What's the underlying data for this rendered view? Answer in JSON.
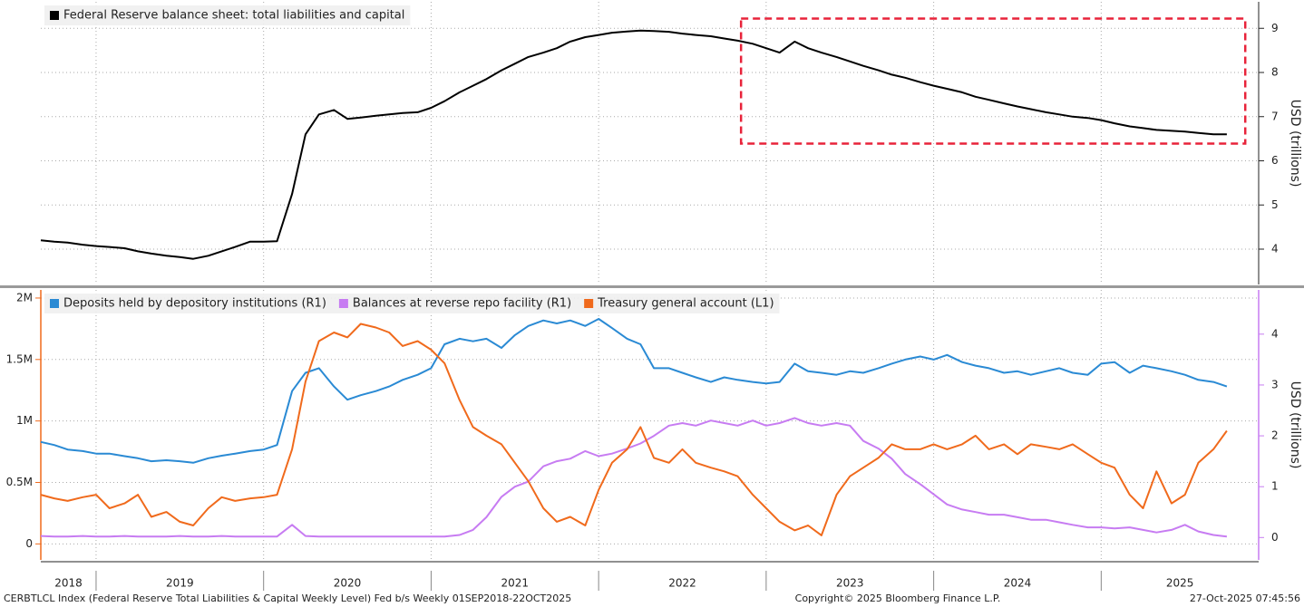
{
  "chart_data": [
    {
      "type": "line",
      "y_axis_position": "right",
      "y_label": "USD (trillions)",
      "legend": "top-left",
      "xlim": [
        2018.67,
        2025.94
      ],
      "xticks": [
        2019,
        2020,
        2021,
        2022,
        2023,
        2024,
        2025
      ],
      "ylim": [
        3.2,
        9.6
      ],
      "yticks": [
        4,
        5,
        6,
        7,
        8,
        9
      ],
      "grid": true,
      "highlight": {
        "xlim": [
          2022.85,
          2025.86
        ],
        "ylim": [
          6.39,
          9.22
        ],
        "color": "#e8233a"
      },
      "x": [
        2018.67,
        2018.75,
        2018.83,
        2018.92,
        2019,
        2019.08,
        2019.17,
        2019.25,
        2019.33,
        2019.42,
        2019.5,
        2019.58,
        2019.67,
        2019.75,
        2019.83,
        2019.92,
        2020,
        2020.08,
        2020.17,
        2020.25,
        2020.33,
        2020.42,
        2020.5,
        2020.58,
        2020.67,
        2020.75,
        2020.83,
        2020.92,
        2021,
        2021.08,
        2021.17,
        2021.25,
        2021.33,
        2021.42,
        2021.5,
        2021.58,
        2021.67,
        2021.75,
        2021.83,
        2021.92,
        2022,
        2022.08,
        2022.17,
        2022.25,
        2022.33,
        2022.42,
        2022.5,
        2022.58,
        2022.67,
        2022.75,
        2022.83,
        2022.92,
        2023,
        2023.08,
        2023.17,
        2023.25,
        2023.33,
        2023.42,
        2023.5,
        2023.58,
        2023.67,
        2023.75,
        2023.83,
        2023.92,
        2024,
        2024.08,
        2024.17,
        2024.25,
        2024.33,
        2024.42,
        2024.5,
        2024.58,
        2024.67,
        2024.75,
        2024.83,
        2024.92,
        2025,
        2025.08,
        2025.17,
        2025.25,
        2025.33,
        2025.42,
        2025.5,
        2025.58,
        2025.67,
        2025.75
      ],
      "series": [
        {
          "name": "Federal Reserve balance sheet: total liabilities and capital",
          "color": "#000000",
          "values": [
            4.2,
            4.17,
            4.15,
            4.1,
            4.07,
            4.05,
            4.02,
            3.95,
            3.9,
            3.85,
            3.82,
            3.78,
            3.85,
            3.95,
            4.05,
            4.17,
            4.17,
            4.18,
            5.25,
            6.6,
            7.05,
            7.15,
            6.95,
            6.98,
            7.02,
            7.05,
            7.08,
            7.1,
            7.2,
            7.35,
            7.55,
            7.7,
            7.85,
            8.05,
            8.2,
            8.35,
            8.45,
            8.55,
            8.7,
            8.8,
            8.85,
            8.9,
            8.93,
            8.95,
            8.94,
            8.92,
            8.88,
            8.85,
            8.82,
            8.77,
            8.72,
            8.65,
            8.55,
            8.45,
            8.7,
            8.55,
            8.45,
            8.35,
            8.25,
            8.15,
            8.05,
            7.95,
            7.88,
            7.78,
            7.7,
            7.63,
            7.55,
            7.45,
            7.38,
            7.3,
            7.23,
            7.17,
            7.1,
            7.05,
            7.0,
            6.97,
            6.92,
            6.85,
            6.78,
            6.74,
            6.7,
            6.68,
            6.66,
            6.63,
            6.6,
            6.6
          ]
        }
      ]
    },
    {
      "type": "line",
      "y2_label": "USD (trillions)",
      "legend": "top-left",
      "xlim": [
        2018.67,
        2025.94
      ],
      "xticks": [
        2019,
        2020,
        2021,
        2022,
        2023,
        2024,
        2025
      ],
      "xlabels": [
        2018,
        2019,
        2020,
        2021,
        2022,
        2023,
        2024,
        2025
      ],
      "ylim": [
        -130000,
        2066000
      ],
      "yticks": [
        0,
        {
          "value": 500000,
          "label": "0.5M"
        },
        {
          "value": 1000000,
          "label": "1M"
        },
        {
          "value": 1500000,
          "label": "1.5M"
        },
        {
          "value": 2000000,
          "label": "2M"
        }
      ],
      "y2lim": [
        -0.44,
        4.87
      ],
      "y2ticks": [
        0,
        1,
        2,
        3,
        4
      ],
      "grid": true,
      "x": [
        2018.67,
        2018.75,
        2018.83,
        2018.92,
        2019,
        2019.08,
        2019.17,
        2019.25,
        2019.33,
        2019.42,
        2019.5,
        2019.58,
        2019.67,
        2019.75,
        2019.83,
        2019.92,
        2020,
        2020.08,
        2020.17,
        2020.25,
        2020.33,
        2020.42,
        2020.5,
        2020.58,
        2020.67,
        2020.75,
        2020.83,
        2020.92,
        2021,
        2021.08,
        2021.17,
        2021.25,
        2021.33,
        2021.42,
        2021.5,
        2021.58,
        2021.67,
        2021.75,
        2021.83,
        2021.92,
        2022,
        2022.08,
        2022.17,
        2022.25,
        2022.33,
        2022.42,
        2022.5,
        2022.58,
        2022.67,
        2022.75,
        2022.83,
        2022.92,
        2023,
        2023.08,
        2023.17,
        2023.25,
        2023.33,
        2023.42,
        2023.5,
        2023.58,
        2023.67,
        2023.75,
        2023.83,
        2023.92,
        2024,
        2024.08,
        2024.17,
        2024.25,
        2024.33,
        2024.42,
        2024.5,
        2024.58,
        2024.67,
        2024.75,
        2024.83,
        2024.92,
        2025,
        2025.08,
        2025.17,
        2025.25,
        2025.33,
        2025.42,
        2025.5,
        2025.58,
        2025.67,
        2025.75
      ],
      "series": [
        {
          "name": "Deposits held by depository institutions (R1)",
          "color": "#2a8ad4",
          "axis": "y2",
          "values": [
            1.88,
            1.82,
            1.73,
            1.7,
            1.65,
            1.65,
            1.6,
            1.56,
            1.5,
            1.52,
            1.5,
            1.47,
            1.56,
            1.61,
            1.65,
            1.7,
            1.73,
            1.82,
            2.88,
            3.24,
            3.33,
            2.97,
            2.71,
            2.8,
            2.88,
            2.97,
            3.1,
            3.2,
            3.33,
            3.8,
            3.91,
            3.86,
            3.91,
            3.73,
            3.98,
            4.16,
            4.27,
            4.21,
            4.27,
            4.16,
            4.3,
            4.12,
            3.91,
            3.8,
            3.33,
            3.33,
            3.24,
            3.15,
            3.06,
            3.15,
            3.1,
            3.06,
            3.03,
            3.06,
            3.42,
            3.27,
            3.24,
            3.2,
            3.27,
            3.24,
            3.33,
            3.42,
            3.5,
            3.56,
            3.5,
            3.59,
            3.45,
            3.38,
            3.33,
            3.24,
            3.27,
            3.2,
            3.27,
            3.33,
            3.24,
            3.2,
            3.42,
            3.45,
            3.24,
            3.38,
            3.33,
            3.27,
            3.2,
            3.1,
            3.06,
            2.97
          ]
        },
        {
          "name": "Balances at reverse repo facility (R1)",
          "color": "#c77cf2",
          "axis": "y2",
          "values": [
            0.03,
            0.02,
            0.02,
            0.03,
            0.02,
            0.02,
            0.03,
            0.02,
            0.02,
            0.02,
            0.03,
            0.02,
            0.02,
            0.03,
            0.02,
            0.02,
            0.02,
            0.02,
            0.25,
            0.03,
            0.02,
            0.02,
            0.02,
            0.02,
            0.02,
            0.02,
            0.02,
            0.02,
            0.02,
            0.02,
            0.05,
            0.15,
            0.4,
            0.8,
            1.0,
            1.1,
            1.4,
            1.5,
            1.55,
            1.7,
            1.6,
            1.65,
            1.75,
            1.85,
            2.0,
            2.2,
            2.25,
            2.2,
            2.3,
            2.25,
            2.2,
            2.3,
            2.2,
            2.25,
            2.35,
            2.25,
            2.2,
            2.25,
            2.2,
            1.9,
            1.75,
            1.55,
            1.25,
            1.05,
            0.85,
            0.65,
            0.55,
            0.5,
            0.45,
            0.45,
            0.4,
            0.35,
            0.35,
            0.3,
            0.25,
            0.2,
            0.2,
            0.18,
            0.2,
            0.15,
            0.1,
            0.15,
            0.25,
            0.12,
            0.05,
            0.02
          ]
        },
        {
          "name": "Treasury general account (L1)",
          "color": "#f06a1c",
          "axis": "y",
          "values": [
            400000,
            370000,
            350000,
            380000,
            400000,
            290000,
            330000,
            400000,
            220000,
            260000,
            180000,
            150000,
            290000,
            380000,
            350000,
            370000,
            380000,
            400000,
            770000,
            1320000,
            1650000,
            1720000,
            1680000,
            1790000,
            1760000,
            1720000,
            1610000,
            1650000,
            1580000,
            1470000,
            1170000,
            950000,
            880000,
            810000,
            660000,
            510000,
            290000,
            180000,
            220000,
            150000,
            440000,
            660000,
            770000,
            950000,
            700000,
            660000,
            770000,
            660000,
            620000,
            590000,
            550000,
            400000,
            290000,
            180000,
            110000,
            150000,
            70000,
            400000,
            550000,
            620000,
            700000,
            810000,
            770000,
            770000,
            810000,
            770000,
            810000,
            880000,
            770000,
            810000,
            730000,
            810000,
            790000,
            770000,
            810000,
            730000,
            660000,
            620000,
            400000,
            290000,
            590000,
            330000,
            400000,
            660000,
            770000,
            920000
          ]
        }
      ]
    }
  ],
  "footer_left": "CERBTLCL Index (Federal Reserve Total Liabilities & Capital Weekly Level) Fed b/s Weekly 01SEP2018-22OCT2025",
  "footer_center": "Copyright© 2025 Bloomberg Finance L.P.",
  "footer_right": "27-Oct-2025 07:45:56"
}
